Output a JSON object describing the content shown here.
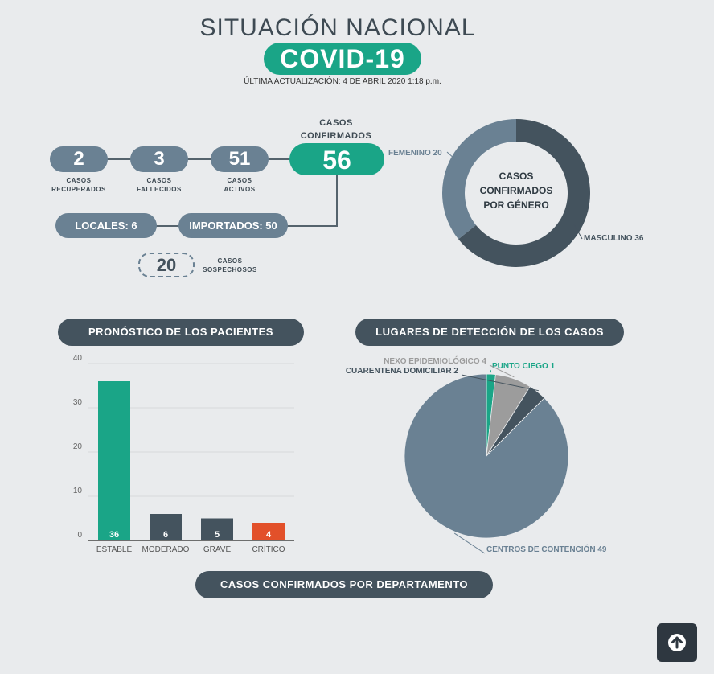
{
  "header": {
    "title": "SITUACIÓN NACIONAL",
    "badge": "COVID-19",
    "updated": "ÚLTIMA ACTUALIZACIÓN: 4 DE ABRIL 2020 1:18 p.m."
  },
  "stats": {
    "recuperados": {
      "value": "2",
      "label_1": "CASOS",
      "label_2": "RECUPERADOS"
    },
    "fallecidos": {
      "value": "3",
      "label_1": "CASOS",
      "label_2": "FALLECIDOS"
    },
    "activos": {
      "value": "51",
      "label_1": "CASOS",
      "label_2": "ACTIVOS"
    },
    "confirmados": {
      "value": "56",
      "label_1": "CASOS",
      "label_2": "CONFIRMADOS"
    },
    "locales": "LOCALES: 6",
    "importados": "IMPORTADOS: 50",
    "sospechosos": {
      "value": "20",
      "label_1": "CASOS",
      "label_2": "SOSPECHOSOS"
    }
  },
  "gender_chart": {
    "center_1": "CASOS",
    "center_2": "CONFIRMADOS",
    "center_3": "POR GÉNERO",
    "femenino_label": "FEMENINO 20",
    "masculino_label": "MASCULINO 36"
  },
  "sections": {
    "pronostico": "PRONÓSTICO DE LOS PACIENTES",
    "lugares": "LUGARES DE DETECCIÓN DE LOS CASOS",
    "departamento": "CASOS CONFIRMADOS POR DEPARTAMENTO"
  },
  "chart_data": [
    {
      "type": "pie",
      "labels": [
        "FEMENINO",
        "MASCULINO"
      ],
      "values": [
        20,
        36
      ],
      "colors": [
        "#6a8193",
        "#44535e"
      ]
    },
    {
      "type": "bar",
      "categories": [
        "ESTABLE",
        "MODERADO",
        "GRAVE",
        "CRÍTICO"
      ],
      "values": [
        36,
        6,
        5,
        4
      ],
      "colors": [
        "#1aa587",
        "#44535e",
        "#44535e",
        "#e2502a"
      ],
      "ylim": [
        0,
        40
      ],
      "yticks": [
        "0",
        "10",
        "20",
        "30",
        "40"
      ],
      "grid": true
    },
    {
      "type": "pie",
      "labels": [
        "PUNTO CIEGO 1",
        "NEXO EPIDEMIOLÓGICO 4",
        "CUARENTENA DOMICILIAR 2",
        "CENTROS DE CONTENCIÓN 49"
      ],
      "values": [
        1,
        4,
        2,
        49
      ],
      "colors": [
        "#1aa587",
        "#9c9c9c",
        "#44535e",
        "#6a8193"
      ]
    }
  ],
  "colors": {
    "green": "#1aa587",
    "slate": "#6a8193",
    "dark": "#44535e",
    "red": "#e2502a"
  },
  "icons": {
    "scroll_top": "arrow-up-circle-icon"
  }
}
